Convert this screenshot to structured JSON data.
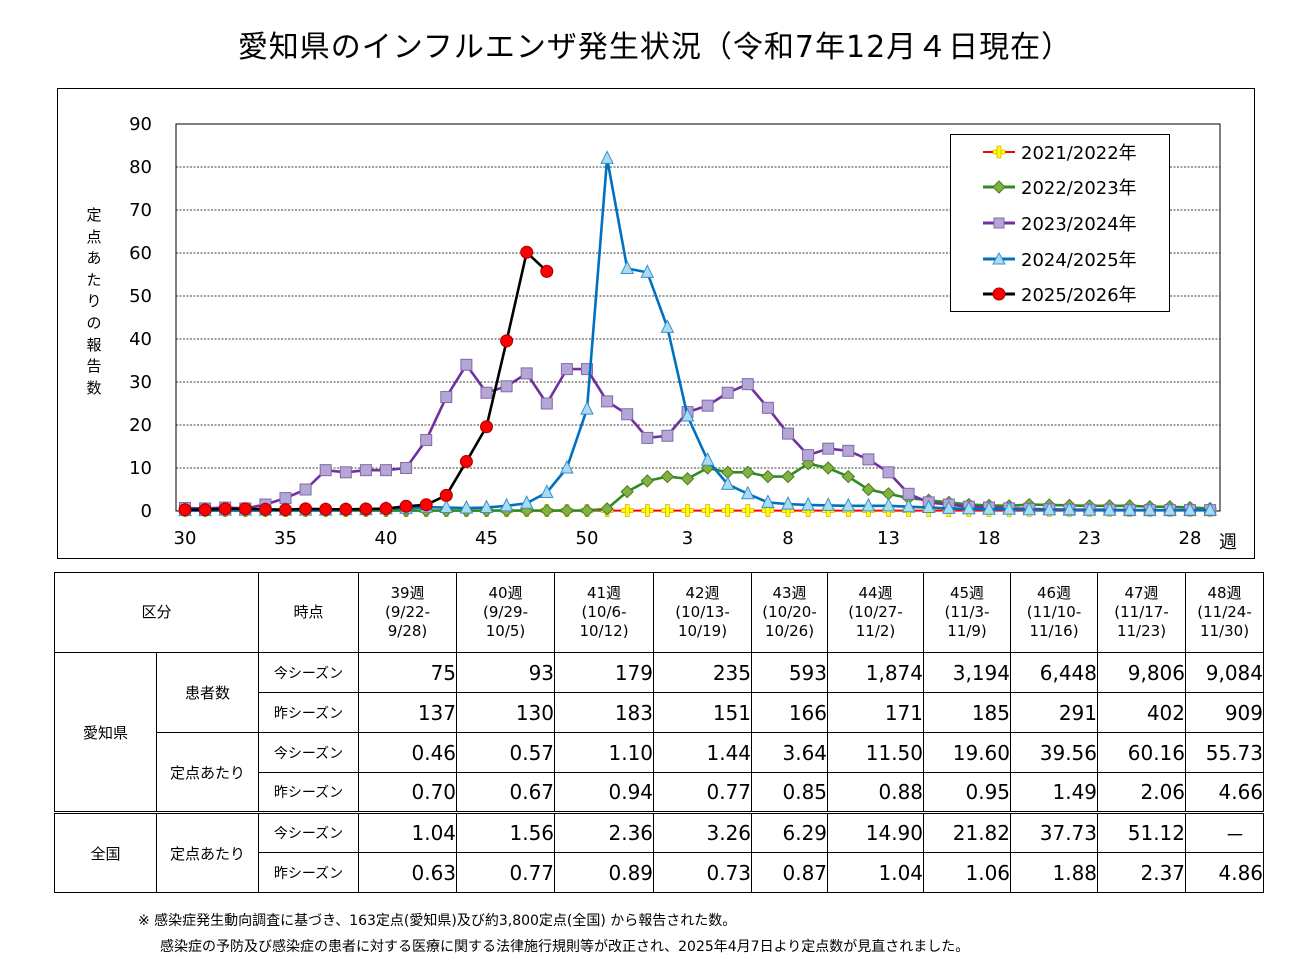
{
  "title": "愛知県のインフルエンザ発生状況（令和7年12月４日現在）",
  "chart_data": {
    "type": "line",
    "ylabel": "定点あたりの報告数",
    "xlabel": "週",
    "ylim": [
      0,
      90
    ],
    "yticks": [
      0,
      10,
      20,
      30,
      40,
      50,
      60,
      70,
      80,
      90
    ],
    "xtick_labels": [
      "30",
      "35",
      "40",
      "45",
      "50",
      "3",
      "8",
      "13",
      "18",
      "23",
      "28"
    ],
    "weeks": [
      30,
      31,
      32,
      33,
      34,
      35,
      36,
      37,
      38,
      39,
      40,
      41,
      42,
      43,
      44,
      45,
      46,
      47,
      48,
      49,
      50,
      51,
      52,
      1,
      2,
      3,
      4,
      5,
      6,
      7,
      8,
      9,
      10,
      11,
      12,
      13,
      14,
      15,
      16,
      17,
      18,
      19,
      20,
      21,
      22,
      23,
      24,
      25,
      26,
      27,
      28,
      29
    ],
    "series": [
      {
        "name": "2021/2022年",
        "color": "#ff0000",
        "marker": "plus",
        "values": [
          0.1,
          0.1,
          0.1,
          0.1,
          0.1,
          0.1,
          0.1,
          0.1,
          0.1,
          0.1,
          0.1,
          0.1,
          0.1,
          0.1,
          0.1,
          0.1,
          0.1,
          0.1,
          0.1,
          0.1,
          0.1,
          0.1,
          0.1,
          0.1,
          0.1,
          0.1,
          0.1,
          0.1,
          0.1,
          0.1,
          0.1,
          0.1,
          0.1,
          0.1,
          0.1,
          0.1,
          0.1,
          0.1,
          0.1,
          0.1,
          0.1,
          0.1,
          0.1,
          0.1,
          0.1,
          0.1,
          0.1,
          0.1,
          0.1,
          0.1,
          0.1,
          0.1
        ]
      },
      {
        "name": "2022/2023年",
        "color": "#2e8b22",
        "marker": "diamond",
        "values": [
          0.1,
          0.1,
          0.1,
          0.1,
          0.1,
          0.1,
          0.1,
          0.1,
          0.1,
          0.1,
          0.1,
          0.1,
          0.1,
          0.1,
          0.1,
          0.1,
          0.1,
          0.1,
          0.1,
          0.1,
          0.1,
          0.5,
          4.5,
          7,
          8,
          7.5,
          10,
          9,
          9,
          8,
          8,
          11,
          10,
          8,
          5,
          4,
          3,
          2.5,
          2,
          1.5,
          1.3,
          1.2,
          1.5,
          1.4,
          1.3,
          1.2,
          1.2,
          1.2,
          1.0,
          1.0,
          0.8,
          0.6
        ]
      },
      {
        "name": "2023/2024年",
        "color": "#7030a0",
        "marker": "square",
        "values": [
          0.7,
          0.6,
          0.8,
          0.6,
          1.5,
          3,
          5,
          9.5,
          9,
          9.5,
          9.5,
          10,
          16.5,
          26.5,
          34,
          27.5,
          29,
          32,
          25,
          33,
          33,
          25.5,
          22.5,
          17,
          17.5,
          23,
          24.5,
          27.5,
          29.5,
          24,
          18,
          13,
          14.5,
          14,
          12,
          9,
          4,
          2,
          1.5,
          1,
          0.8,
          0.6,
          0.5,
          0.4,
          0.3,
          0.3,
          0.3,
          0.2,
          0.2,
          0.2,
          0.2,
          0.2
        ]
      },
      {
        "name": "2024/2025年",
        "color": "#0070c0",
        "marker": "triangle",
        "values": [
          0.1,
          0.1,
          0.2,
          0.2,
          0.2,
          0.2,
          0.2,
          0.2,
          0.3,
          0.3,
          0.5,
          0.6,
          0.9,
          0.8,
          0.7,
          0.8,
          1.2,
          1.8,
          4.3,
          10,
          23.7,
          82,
          56.4,
          55.5,
          42.7,
          22.1,
          11.8,
          6.2,
          4,
          2,
          1.6,
          1.4,
          1.3,
          1.2,
          1.2,
          1.2,
          1.0,
          0.8,
          0.6,
          0.5,
          0.4,
          0.4,
          0.3,
          0.3,
          0.3,
          0.2,
          0.2,
          0.2,
          0.2,
          0.2,
          0.2,
          0.2
        ]
      },
      {
        "name": "2025/2026年",
        "color": "#000000",
        "marker": "circle",
        "values": [
          0.3,
          0.3,
          0.5,
          0.5,
          0.4,
          0.3,
          0.5,
          0.4,
          0.4,
          0.46,
          0.57,
          1.1,
          1.44,
          3.64,
          11.5,
          19.6,
          39.56,
          60.16,
          55.73,
          null,
          null,
          null,
          null,
          null,
          null,
          null,
          null,
          null,
          null,
          null,
          null,
          null,
          null,
          null,
          null,
          null,
          null,
          null,
          null,
          null,
          null,
          null,
          null,
          null,
          null,
          null,
          null,
          null,
          null,
          null,
          null,
          null
        ]
      }
    ]
  },
  "table": {
    "header": {
      "col1": "区分",
      "col2": "時点",
      "weeks": [
        "39週\n(9/22-\n9/28)",
        "40週\n(9/29-\n10/5)",
        "41週\n(10/6-\n10/12)",
        "42週\n(10/13-\n10/19)",
        "43週\n(10/20-\n10/26)",
        "44週\n(10/27-\n11/2)",
        "45週\n(11/3-\n11/9)",
        "46週\n(11/10-\n11/16)",
        "47週\n(11/17-\n11/23)",
        "48週\n(11/24-\n11/30)"
      ]
    },
    "aichi": {
      "label": "愛知県",
      "patients_label": "患者数",
      "per_point_label": "定点あたり",
      "patients_this": [
        "75",
        "93",
        "179",
        "235",
        "593",
        "1,874",
        "3,194",
        "6,448",
        "9,806",
        "9,084"
      ],
      "patients_last": [
        "137",
        "130",
        "183",
        "151",
        "166",
        "171",
        "185",
        "291",
        "402",
        "909"
      ],
      "per_this": [
        "0.46",
        "0.57",
        "1.10",
        "1.44",
        "3.64",
        "11.50",
        "19.60",
        "39.56",
        "60.16",
        "55.73"
      ],
      "per_last": [
        "0.70",
        "0.67",
        "0.94",
        "0.77",
        "0.85",
        "0.88",
        "0.95",
        "1.49",
        "2.06",
        "4.66"
      ]
    },
    "national": {
      "label": "全国",
      "per_point_label": "定点あたり",
      "per_this": [
        "1.04",
        "1.56",
        "2.36",
        "3.26",
        "6.29",
        "14.90",
        "21.82",
        "37.73",
        "51.12",
        "－"
      ],
      "per_last": [
        "0.63",
        "0.77",
        "0.89",
        "0.73",
        "0.87",
        "1.04",
        "1.06",
        "1.88",
        "2.37",
        "4.86"
      ]
    },
    "this_season": "今シーズン",
    "last_season": "昨シーズン"
  },
  "notes": {
    "line1": "※ 感染症発生動向調査に基づき、163定点(愛知県)及び約3,800定点(全国) から報告された数。",
    "line2": "感染症の予防及び感染症の患者に対する医療に関する法律施行規則等が改正され、2025年4月7日より定点数が見直されました。"
  }
}
